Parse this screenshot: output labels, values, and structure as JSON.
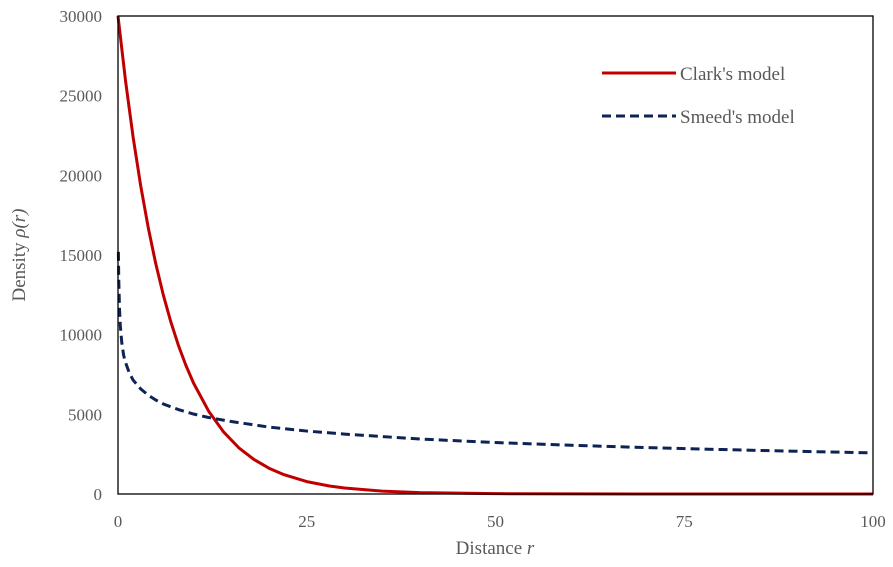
{
  "chart_data": {
    "type": "line",
    "title": "",
    "xlabel": "Distance",
    "xlabel_var": "r",
    "ylabel": "Density",
    "ylabel_var": "ρ(r)",
    "xlim": [
      0,
      100
    ],
    "ylim": [
      0,
      30000
    ],
    "xticks": [
      0,
      25,
      50,
      75,
      100
    ],
    "yticks": [
      0,
      5000,
      10000,
      15000,
      20000,
      25000,
      30000
    ],
    "grid": false,
    "legend_position": "top-right",
    "series": [
      {
        "name": "Clark's model",
        "color": "#C00000",
        "style": "solid",
        "x": [
          0,
          1,
          2,
          3,
          4,
          5,
          6,
          7,
          8,
          9,
          10,
          12,
          14,
          16,
          18,
          20,
          22,
          25,
          28,
          30,
          35,
          40,
          50,
          60,
          70,
          80,
          90,
          100
        ],
        "y": [
          30000,
          25925,
          22404,
          19361,
          16731,
          14458,
          12494,
          10797,
          9330,
          8063,
          6968,
          5203,
          3886,
          2902,
          2167,
          1618,
          1209,
          778,
          501,
          374,
          181,
          88,
          21,
          5,
          1,
          0,
          0,
          0
        ]
      },
      {
        "name": "Smeed's model",
        "color": "#0D2355",
        "style": "dashed",
        "x": [
          0.05,
          0.1,
          0.2,
          0.3,
          0.5,
          0.75,
          1,
          1.5,
          2,
          3,
          4,
          5,
          6,
          8,
          10,
          12,
          15,
          20,
          25,
          30,
          40,
          50,
          60,
          70,
          80,
          90,
          100
        ],
        "y": [
          15200,
          13500,
          11600,
          10600,
          9500,
          8700,
          8250,
          7600,
          7150,
          6600,
          6200,
          5900,
          5650,
          5300,
          5020,
          4800,
          4550,
          4200,
          3950,
          3760,
          3450,
          3230,
          3060,
          2910,
          2790,
          2680,
          2580
        ]
      }
    ]
  }
}
